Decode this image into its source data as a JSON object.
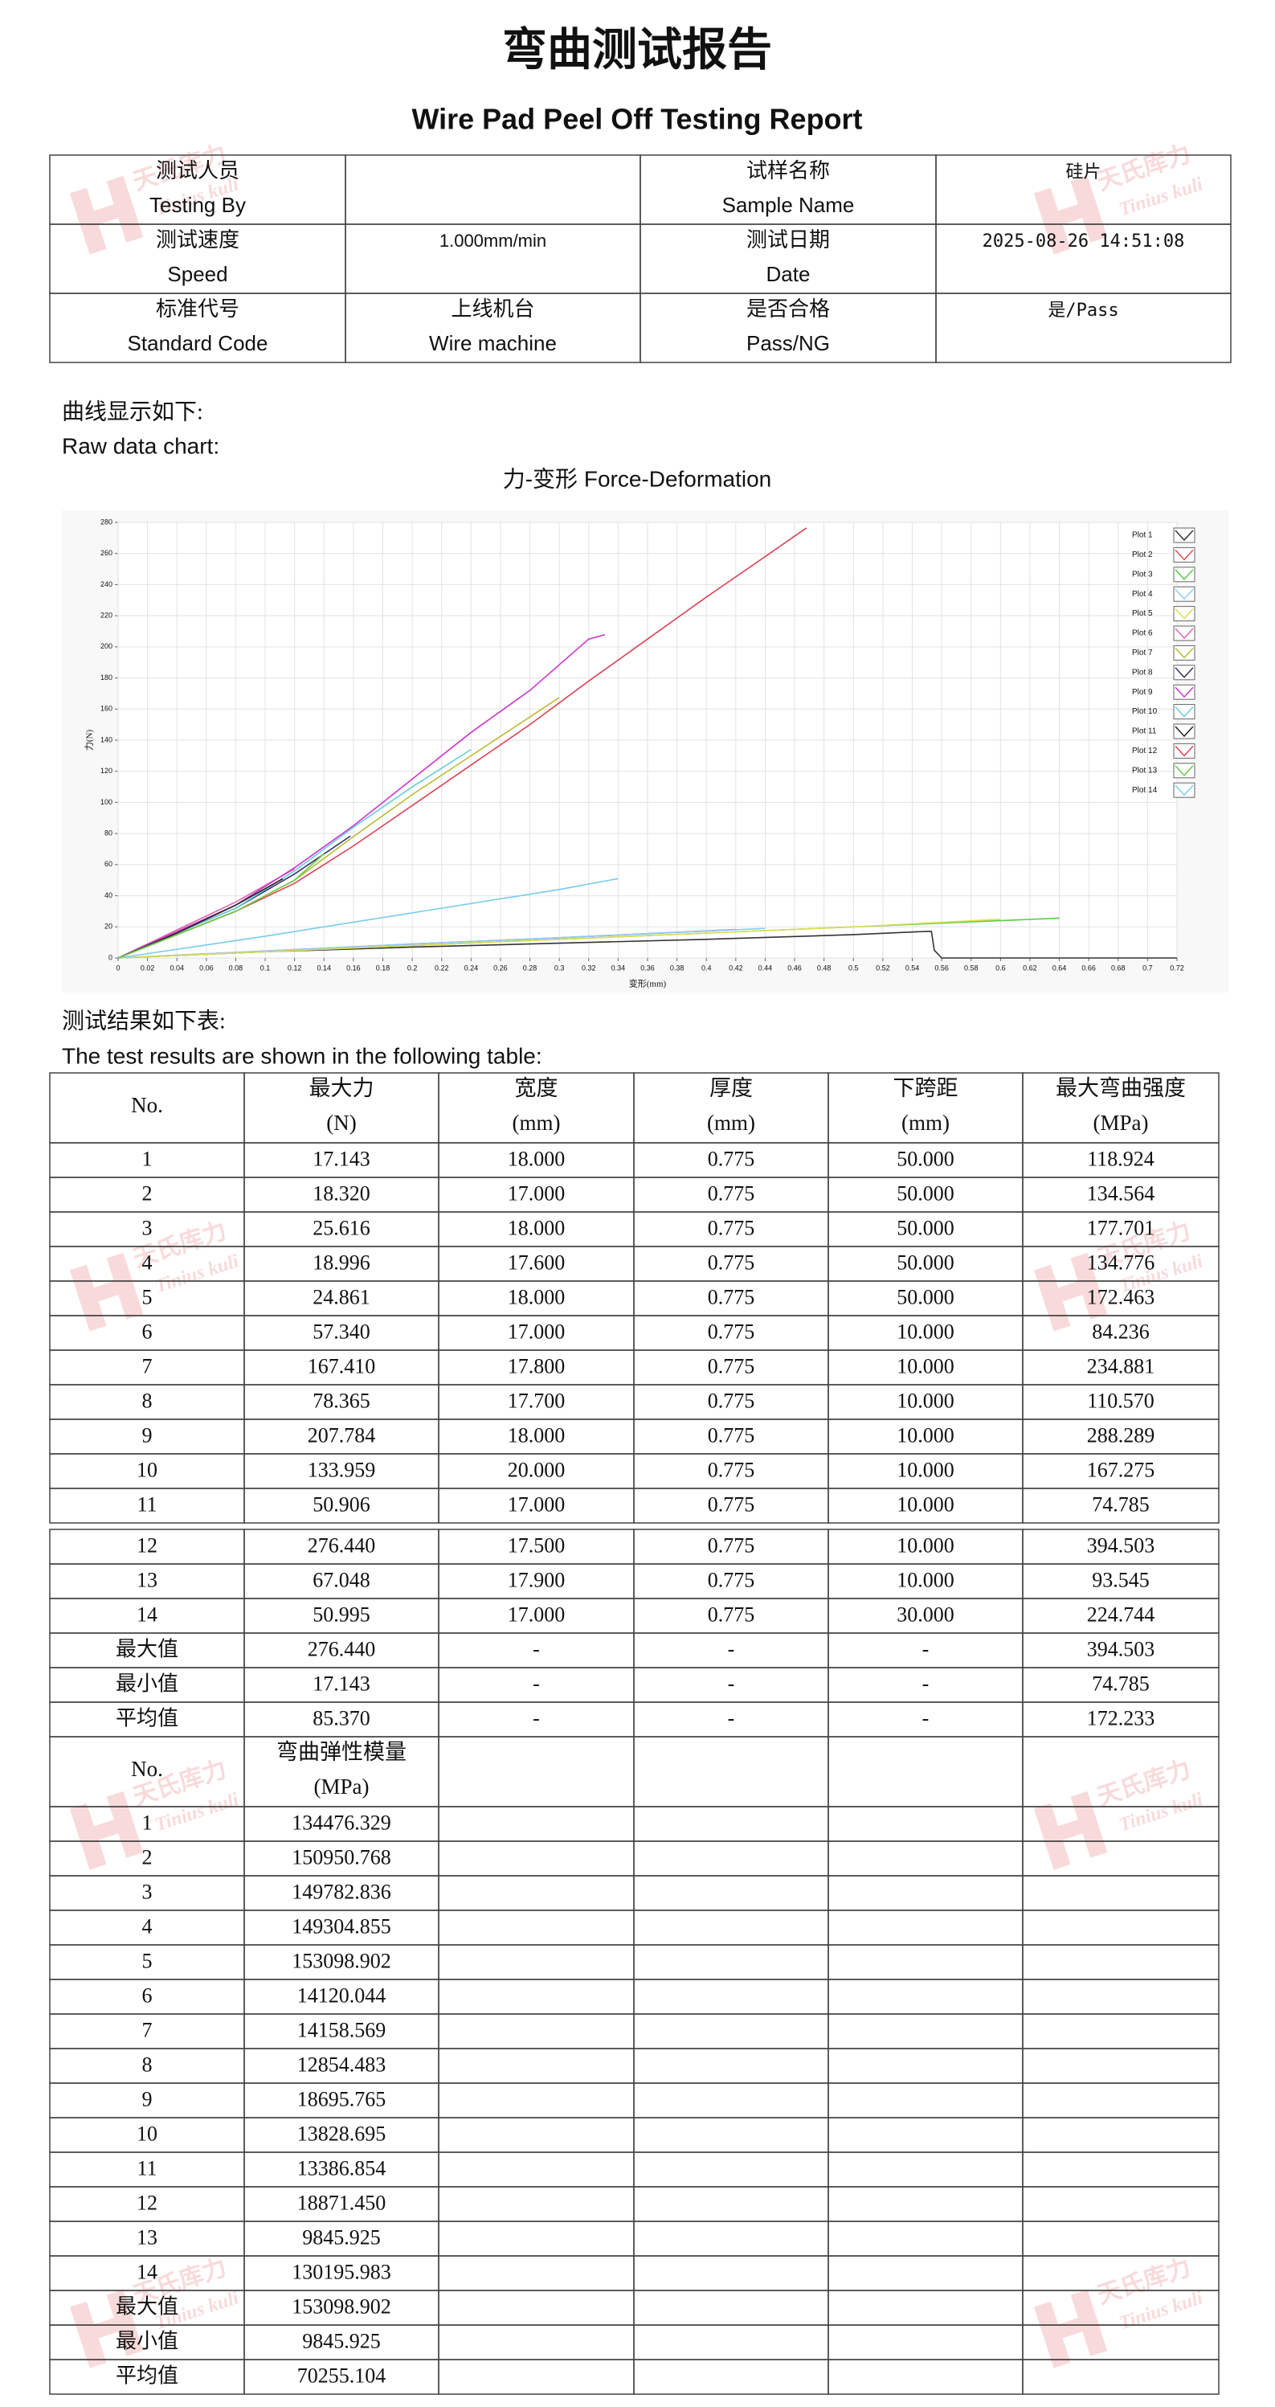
{
  "header": {
    "title_cn": "弯曲测试报告",
    "title_en": "Wire Pad Peel Off Testing Report"
  },
  "watermark": {
    "brand_cn": "天氏库力",
    "brand_en": "Tinius kuli"
  },
  "info_table": {
    "rows": [
      {
        "label": {
          "cn": "测试人员",
          "en": "Testing By"
        },
        "label2": {
          "cn": "试样名称",
          "en": "Sample Name"
        },
        "value2": "硅片"
      },
      {
        "label": {
          "cn": "测试速度",
          "en": "Speed"
        },
        "value": "1.000mm/min",
        "label2": {
          "cn": "测试日期",
          "en": "Date"
        },
        "value2": "2025-08-26 14:51:08"
      },
      {
        "label": {
          "cn": "标准代号",
          "en": "Standard Code"
        },
        "value": {
          "cn": "上线机台",
          "en": "Wire machine"
        },
        "label2": {
          "cn": "是否合格",
          "en": "Pass/NG"
        },
        "value2": "是/Pass"
      }
    ]
  },
  "chart_section": {
    "cn": "曲线显示如下:",
    "en": "Raw data chart:"
  },
  "chart_data": {
    "type": "line",
    "title": "力-变形 Force-Deformation",
    "x_label": "变形(mm)",
    "y_label": "力(N)",
    "xlim": [
      0,
      0.72
    ],
    "ylim": [
      0,
      280
    ],
    "xticks": [
      0,
      0.02,
      0.04,
      0.06,
      0.08,
      0.1,
      0.12,
      0.14,
      0.16,
      0.18,
      0.2,
      0.22,
      0.24,
      0.26,
      0.28,
      0.3,
      0.32,
      0.34,
      0.36,
      0.38,
      0.4,
      0.42,
      0.44,
      0.46,
      0.48,
      0.5,
      0.52,
      0.54,
      0.56,
      0.58,
      0.6,
      0.62,
      0.64,
      0.66,
      0.68,
      0.7,
      0.72
    ],
    "yticks": [
      0,
      20,
      40,
      60,
      80,
      100,
      120,
      140,
      160,
      180,
      200,
      220,
      240,
      260,
      280
    ],
    "grid": true,
    "legend": "top-right",
    "series": [
      {
        "name": "Plot 1",
        "color": "#333333",
        "x": [
          0,
          0.1,
          0.2,
          0.3,
          0.4,
          0.5,
          0.55,
          0.553,
          0.555,
          0.56,
          0.72
        ],
        "values": [
          0,
          4,
          7,
          9.5,
          12,
          15,
          17.1,
          17.1,
          5,
          0,
          0
        ]
      },
      {
        "name": "Plot 2",
        "color": "#e05050",
        "x": [
          0,
          0.1,
          0.2,
          0.3,
          0.42
        ],
        "values": [
          0,
          4.5,
          9,
          13,
          18.3
        ]
      },
      {
        "name": "Plot 3",
        "color": "#55cc44",
        "x": [
          0,
          0.1,
          0.2,
          0.3,
          0.4,
          0.5,
          0.64
        ],
        "values": [
          0,
          4,
          8,
          12,
          16,
          20,
          25.6
        ]
      },
      {
        "name": "Plot 4",
        "color": "#88ccff",
        "x": [
          0,
          0.1,
          0.2,
          0.3,
          0.44
        ],
        "values": [
          0,
          4.5,
          9,
          13,
          19
        ]
      },
      {
        "name": "Plot 5",
        "color": "#dddd55",
        "x": [
          0,
          0.1,
          0.2,
          0.3,
          0.4,
          0.5,
          0.6
        ],
        "values": [
          0,
          4,
          8,
          12,
          16,
          20,
          24.9
        ]
      },
      {
        "name": "Plot 6",
        "color": "#e066aa",
        "x": [
          0,
          0.04,
          0.08,
          0.12
        ],
        "values": [
          0,
          18,
          36,
          57.3
        ]
      },
      {
        "name": "Plot 7",
        "color": "#bbbb33",
        "x": [
          0,
          0.04,
          0.08,
          0.12,
          0.16,
          0.2,
          0.24,
          0.3
        ],
        "values": [
          0,
          15,
          30,
          50,
          78,
          105,
          130,
          167.4
        ]
      },
      {
        "name": "Plot 8",
        "color": "#333366",
        "x": [
          0,
          0.04,
          0.08,
          0.12,
          0.158
        ],
        "values": [
          0,
          16,
          32,
          54,
          78.4
        ]
      },
      {
        "name": "Plot 9",
        "color": "#cc33cc",
        "x": [
          0,
          0.04,
          0.08,
          0.12,
          0.16,
          0.2,
          0.24,
          0.28,
          0.32,
          0.331
        ],
        "values": [
          0,
          17,
          34,
          58,
          85,
          115,
          145,
          172,
          205,
          207.8
        ]
      },
      {
        "name": "Plot 10",
        "color": "#66ccdd",
        "x": [
          0,
          0.04,
          0.08,
          0.12,
          0.16,
          0.2,
          0.24
        ],
        "values": [
          0,
          16,
          32,
          56,
          84,
          110,
          134
        ]
      },
      {
        "name": "Plot 11",
        "color": "#222222",
        "x": [
          0,
          0.04,
          0.08,
          0.112
        ],
        "values": [
          0,
          16,
          34,
          50.9
        ]
      },
      {
        "name": "Plot 12",
        "color": "#dd4455",
        "x": [
          0,
          0.04,
          0.08,
          0.12,
          0.16,
          0.2,
          0.24,
          0.28,
          0.32,
          0.36,
          0.4,
          0.44,
          0.468
        ],
        "values": [
          0,
          15,
          30,
          48,
          72,
          98,
          124,
          150,
          178,
          205,
          232,
          258,
          276.4
        ]
      },
      {
        "name": "Plot 13",
        "color": "#66cc44",
        "x": [
          0,
          0.04,
          0.08,
          0.12,
          0.14
        ],
        "values": [
          0,
          15,
          30,
          50,
          67
        ]
      },
      {
        "name": "Plot 14",
        "color": "#77ccee",
        "x": [
          0,
          0.1,
          0.2,
          0.3,
          0.34
        ],
        "values": [
          0,
          14,
          29,
          44,
          51
        ]
      }
    ]
  },
  "results_section": {
    "cn": "测试结果如下表:",
    "en": "The test results are shown in the following table:"
  },
  "results_table": {
    "header": [
      {
        "name": "No."
      },
      {
        "name": "最大力",
        "unit": "(N)"
      },
      {
        "name": "宽度",
        "unit": "(mm)"
      },
      {
        "name": "厚度",
        "unit": "(mm)"
      },
      {
        "name": "下跨距",
        "unit": "(mm)"
      },
      {
        "name": "最大弯曲强度",
        "unit": "(MPa)"
      }
    ],
    "rows": [
      [
        "1",
        "17.143",
        "18.000",
        "0.775",
        "50.000",
        "118.924"
      ],
      [
        "2",
        "18.320",
        "17.000",
        "0.775",
        "50.000",
        "134.564"
      ],
      [
        "3",
        "25.616",
        "18.000",
        "0.775",
        "50.000",
        "177.701"
      ],
      [
        "4",
        "18.996",
        "17.600",
        "0.775",
        "50.000",
        "134.776"
      ],
      [
        "5",
        "24.861",
        "18.000",
        "0.775",
        "50.000",
        "172.463"
      ],
      [
        "6",
        "57.340",
        "17.000",
        "0.775",
        "10.000",
        "84.236"
      ],
      [
        "7",
        "167.410",
        "17.800",
        "0.775",
        "10.000",
        "234.881"
      ],
      [
        "8",
        "78.365",
        "17.700",
        "0.775",
        "10.000",
        "110.570"
      ],
      [
        "9",
        "207.784",
        "18.000",
        "0.775",
        "10.000",
        "288.289"
      ],
      [
        "10",
        "133.959",
        "20.000",
        "0.775",
        "10.000",
        "167.275"
      ],
      [
        "11",
        "50.906",
        "17.000",
        "0.775",
        "10.000",
        "74.785"
      ],
      [
        "12",
        "276.440",
        "17.500",
        "0.775",
        "10.000",
        "394.503"
      ],
      [
        "13",
        "67.048",
        "17.900",
        "0.775",
        "10.000",
        "93.545"
      ],
      [
        "14",
        "50.995",
        "17.000",
        "0.775",
        "30.000",
        "224.744"
      ]
    ],
    "summary": [
      [
        "最大值",
        "276.440",
        "-",
        "-",
        "-",
        "394.503"
      ],
      [
        "最小值",
        "17.143",
        "-",
        "-",
        "-",
        "74.785"
      ],
      [
        "平均值",
        "85.370",
        "-",
        "-",
        "-",
        "172.233"
      ]
    ]
  },
  "modulus_table": {
    "header": [
      {
        "name": "No."
      },
      {
        "name": "弯曲弹性模量",
        "unit": "(MPa)"
      }
    ],
    "rows": [
      [
        "1",
        "134476.329"
      ],
      [
        "2",
        "150950.768"
      ],
      [
        "3",
        "149782.836"
      ],
      [
        "4",
        "149304.855"
      ],
      [
        "5",
        "153098.902"
      ],
      [
        "6",
        "14120.044"
      ],
      [
        "7",
        "14158.569"
      ],
      [
        "8",
        "12854.483"
      ],
      [
        "9",
        "18695.765"
      ],
      [
        "10",
        "13828.695"
      ],
      [
        "11",
        "13386.854"
      ],
      [
        "12",
        "18871.450"
      ],
      [
        "13",
        "9845.925"
      ],
      [
        "14",
        "130195.983"
      ]
    ],
    "summary": [
      [
        "最大值",
        "153098.902"
      ],
      [
        "最小值",
        "9845.925"
      ],
      [
        "平均值",
        "70255.104"
      ]
    ]
  }
}
